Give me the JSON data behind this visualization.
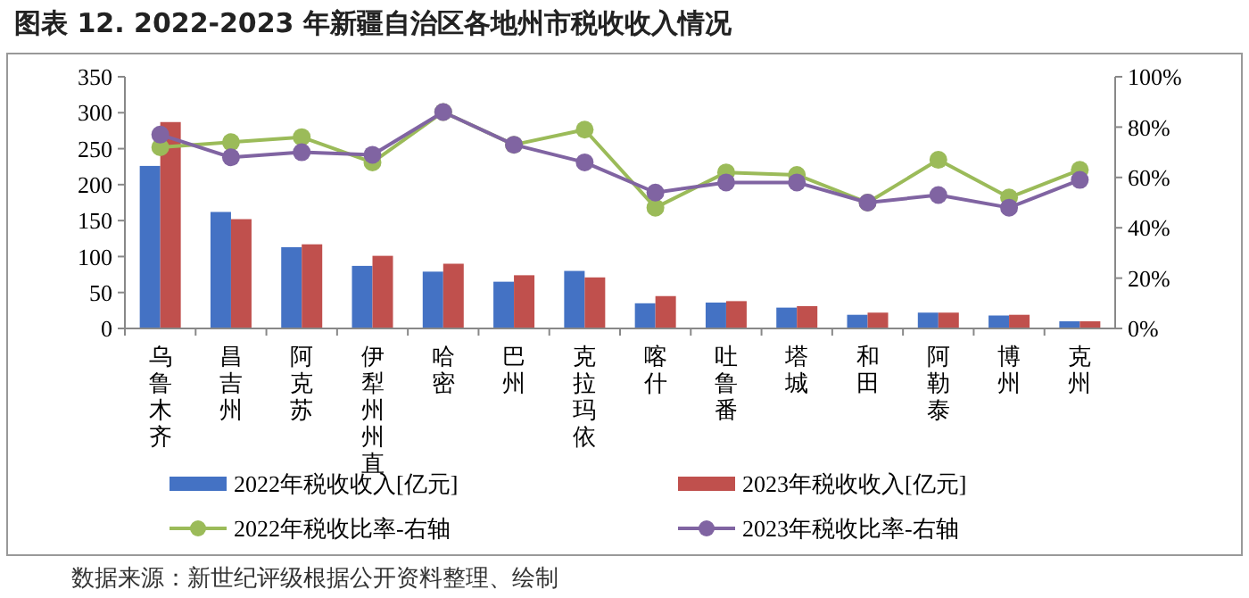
{
  "chart_data": {
    "type": "bar",
    "title": "图表 12. 2022-2023 年新疆自治区各地州市税收收入情况",
    "annotations": [
      "数据来源：新世纪评级根据公开资料整理、绘制"
    ],
    "categories": [
      "乌鲁木齐",
      "昌吉州",
      "阿克苏",
      "伊犁州州直",
      "哈密",
      "巴州",
      "克拉玛依",
      "喀什",
      "吐鲁番",
      "塔城",
      "和田",
      "阿勒泰",
      "博州",
      "克州"
    ],
    "series": [
      {
        "name": "2022年税收收入[亿元]",
        "color": "#4472c4",
        "values": [
          226,
          162,
          113,
          87,
          79,
          65,
          80,
          35,
          36,
          29,
          19,
          22,
          18,
          10
        ]
      },
      {
        "name": "2023年税收收入[亿元]",
        "color": "#c0504d",
        "values": [
          287,
          152,
          117,
          101,
          90,
          74,
          71,
          45,
          38,
          31,
          22,
          22,
          19,
          10
        ]
      },
      {
        "name": "2022年税收比率-右轴",
        "type": "line",
        "axis": "y2",
        "color": "#9bbb59",
        "values": [
          72,
          74,
          76,
          66,
          86,
          73,
          79,
          48,
          62,
          61,
          50,
          67,
          52,
          63
        ]
      },
      {
        "name": "2023年税收比率-右轴",
        "type": "line",
        "axis": "y2",
        "color": "#8064a2",
        "values": [
          77,
          68,
          70,
          69,
          86,
          73,
          66,
          54,
          58,
          58,
          50,
          53,
          48,
          59
        ]
      }
    ],
    "ylim": [
      0,
      350
    ],
    "yticks": [
      0,
      50,
      100,
      150,
      200,
      250,
      300,
      350
    ],
    "y2lim": [
      0,
      100
    ],
    "y2ticks": [
      {
        "value": 0,
        "label": "0%"
      },
      {
        "value": 20,
        "label": "20%"
      },
      {
        "value": 40,
        "label": "40%"
      },
      {
        "value": 60,
        "label": "60%"
      },
      {
        "value": 80,
        "label": "80%"
      },
      {
        "value": 100,
        "label": "100%"
      }
    ],
    "marker": "circle",
    "legend": "bottom",
    "grid": false
  }
}
